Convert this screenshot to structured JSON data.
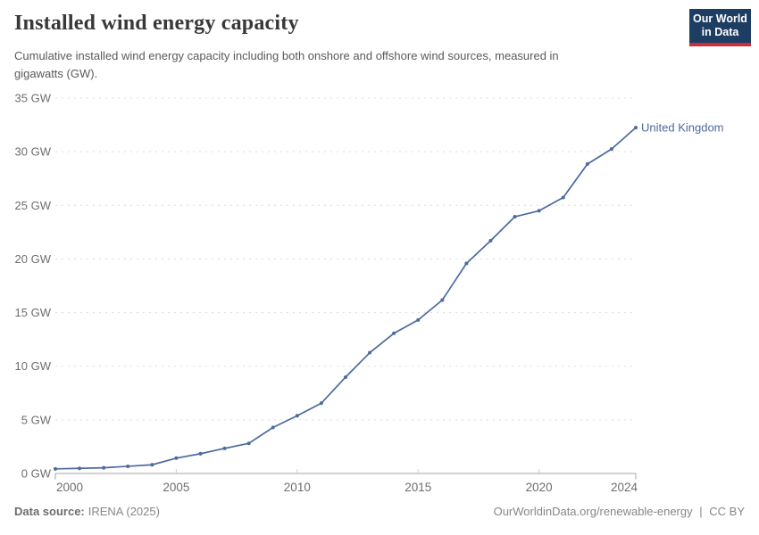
{
  "header": {
    "title": "Installed wind energy capacity",
    "subtitle_lines": [
      "Cumulative installed wind energy capacity including both onshore and offshore wind sources, measured in",
      "gigawatts (GW)."
    ],
    "logo": {
      "line1": "Our World",
      "line2": "in Data"
    }
  },
  "chart_data": {
    "type": "line",
    "title": "Installed wind energy capacity",
    "xlabel": "",
    "ylabel": "",
    "xlim": [
      2000,
      2024
    ],
    "ylim": [
      0,
      35
    ],
    "grid": "horizontal-dashed",
    "legend_position": "end-of-line-label",
    "x_ticks": [
      2000,
      2005,
      2010,
      2015,
      2020,
      2024
    ],
    "y_ticks": [
      0,
      5,
      10,
      15,
      20,
      25,
      30,
      35
    ],
    "y_tick_labels": [
      "0 GW",
      "5 GW",
      "10 GW",
      "15 GW",
      "20 GW",
      "25 GW",
      "30 GW",
      "35 GW"
    ],
    "series": [
      {
        "name": "United Kingdom",
        "color": "#4C6A9C",
        "x": [
          2000,
          2001,
          2002,
          2003,
          2004,
          2005,
          2006,
          2007,
          2008,
          2009,
          2010,
          2011,
          2012,
          2013,
          2014,
          2015,
          2016,
          2017,
          2018,
          2019,
          2020,
          2021,
          2022,
          2023,
          2024
        ],
        "values": [
          0.43,
          0.48,
          0.53,
          0.67,
          0.81,
          1.43,
          1.84,
          2.34,
          2.81,
          4.29,
          5.38,
          6.56,
          8.98,
          11.26,
          13.07,
          14.31,
          16.17,
          19.59,
          21.71,
          23.94,
          24.49,
          25.73,
          28.85,
          30.25,
          32.25
        ]
      }
    ],
    "end_label": "United Kingdom"
  },
  "footer": {
    "source_label": "Data source:",
    "source_value": "IRENA (2025)",
    "url": "OurWorldinData.org/renewable-energy",
    "separator": "|",
    "license": "CC BY"
  },
  "colors": {
    "series_line": "#4C6A9C",
    "grid_line": "#dcdcdc",
    "axis_line": "#a3a3a3",
    "tick_label": "#6e6e6e",
    "logo_bg": "#1d3d63",
    "logo_stripe": "#cb2d3a"
  }
}
